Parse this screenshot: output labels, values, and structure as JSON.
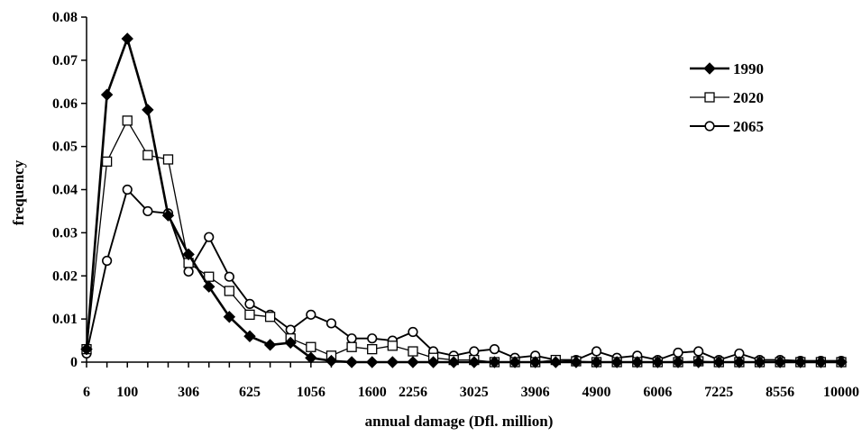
{
  "chart_data": {
    "type": "line",
    "title": "",
    "xlabel": "annual damage (Dfl. million)",
    "ylabel": "frequency",
    "ylim": [
      0,
      0.08
    ],
    "yticks": [
      "0",
      "0.01",
      "0.02",
      "0.03",
      "0.04",
      "0.05",
      "0.06",
      "0.07",
      "0.08"
    ],
    "grid": false,
    "legend_position": "top-right",
    "x_tick_labels": [
      "6",
      "100",
      "306",
      "625",
      "1056",
      "1600",
      "2256",
      "3025",
      "3906",
      "4900",
      "6006",
      "7225",
      "8556",
      "10000"
    ],
    "x_points": [
      6,
      42,
      100,
      182,
      272,
      306,
      412,
      518,
      625,
      742,
      869,
      1056,
      1173,
      1370,
      1600,
      1823,
      2256,
      2467,
      2756,
      3025,
      3329,
      3630,
      3906,
      4290,
      4593,
      4900,
      5282,
      5624,
      6006,
      6432,
      6825,
      7225,
      7687,
      8087,
      8556,
      9076,
      9522,
      10000
    ],
    "series": [
      {
        "name": "1990",
        "marker": "diamond-filled",
        "values": [
          0.003,
          0.062,
          0.075,
          0.0585,
          0.034,
          0.025,
          0.0175,
          0.0105,
          0.006,
          0.004,
          0.0045,
          0.001,
          0.0003,
          0.0,
          0.0,
          0.0,
          0.0,
          0.0,
          0.0,
          0.0,
          0.0,
          0.0,
          0.0,
          0.0,
          0.0,
          0.0,
          0.0,
          0.0,
          0.0,
          0.0,
          0.0,
          0.0,
          0.0,
          0.0,
          0.0,
          0.0,
          0.0,
          0.0
        ]
      },
      {
        "name": "2020",
        "marker": "square-open",
        "values": [
          0.003,
          0.0465,
          0.056,
          0.048,
          0.047,
          0.023,
          0.0198,
          0.0165,
          0.011,
          0.0105,
          0.0055,
          0.0035,
          0.0015,
          0.0035,
          0.003,
          0.0038,
          0.0025,
          0.001,
          0.0005,
          0.0005,
          0.0,
          0.0,
          0.0,
          0.0005,
          0.0002,
          0.0,
          0.0,
          0.0,
          0.0,
          0.0,
          0.0002,
          0.0,
          0.0,
          0.0,
          0.0,
          0.0,
          0.0,
          0.0
        ]
      },
      {
        "name": "2065",
        "marker": "circle-open",
        "values": [
          0.002,
          0.0235,
          0.04,
          0.035,
          0.0345,
          0.021,
          0.029,
          0.0198,
          0.0135,
          0.011,
          0.0075,
          0.011,
          0.009,
          0.0055,
          0.0055,
          0.005,
          0.007,
          0.0025,
          0.0015,
          0.0025,
          0.003,
          0.001,
          0.0015,
          0.0005,
          0.0005,
          0.0025,
          0.001,
          0.0015,
          0.0005,
          0.0022,
          0.0025,
          0.0005,
          0.002,
          0.0005,
          0.0005,
          0.0003,
          0.0003,
          0.0003
        ]
      }
    ]
  }
}
